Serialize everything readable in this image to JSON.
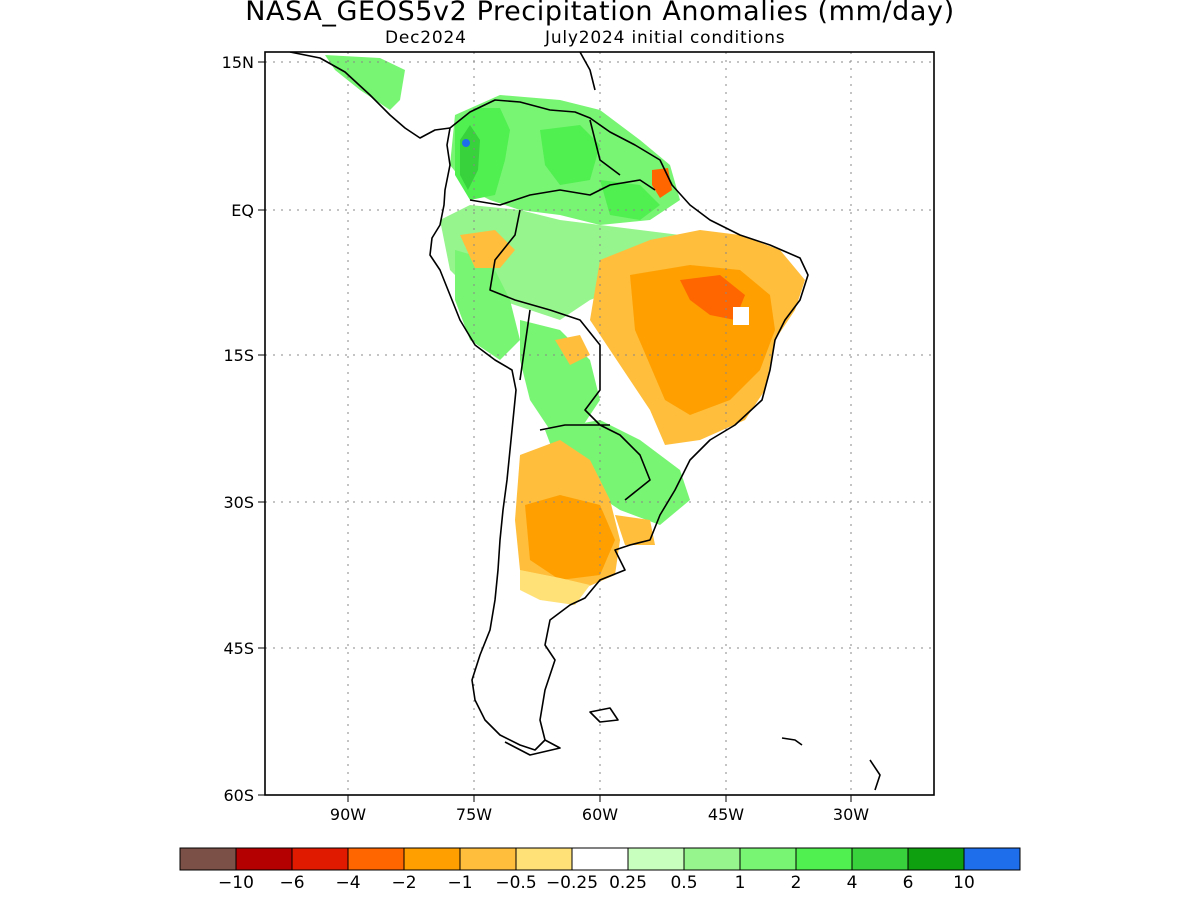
{
  "title": "NASA_GEOS5v2 Precipitation Anomalies (mm/day)",
  "subtitle_left": "Dec2024",
  "subtitle_right": "July2024 initial conditions",
  "lat_labels": [
    "15N",
    "EQ",
    "15S",
    "30S",
    "45S",
    "60S"
  ],
  "lon_labels": [
    "90W",
    "75W",
    "60W",
    "45W",
    "30W"
  ],
  "colorbar": {
    "colors": [
      "#7b5147",
      "#b40000",
      "#e01a00",
      "#ff6600",
      "#ffa000",
      "#ffbe3c",
      "#ffe178",
      "#ffffff",
      "#c8ffbe",
      "#96f58c",
      "#78f573",
      "#50f050",
      "#37d23c",
      "#0fa00f",
      "#1e6eeb"
    ],
    "labels": [
      "−10",
      "−6",
      "−4",
      "−2",
      "−1",
      "−0.5",
      "−0.25",
      "0.25",
      "0.5",
      "1",
      "2",
      "4",
      "6",
      "10"
    ]
  },
  "palette": {
    "orange": "#ffa000",
    "light_orange": "#ffbe3c",
    "yellow": "#ffe178",
    "dark_orange": "#ff6600",
    "light_green": "#96f58c",
    "green": "#78f573",
    "mid_green": "#50f050",
    "dark_green": "#37d23c"
  }
}
